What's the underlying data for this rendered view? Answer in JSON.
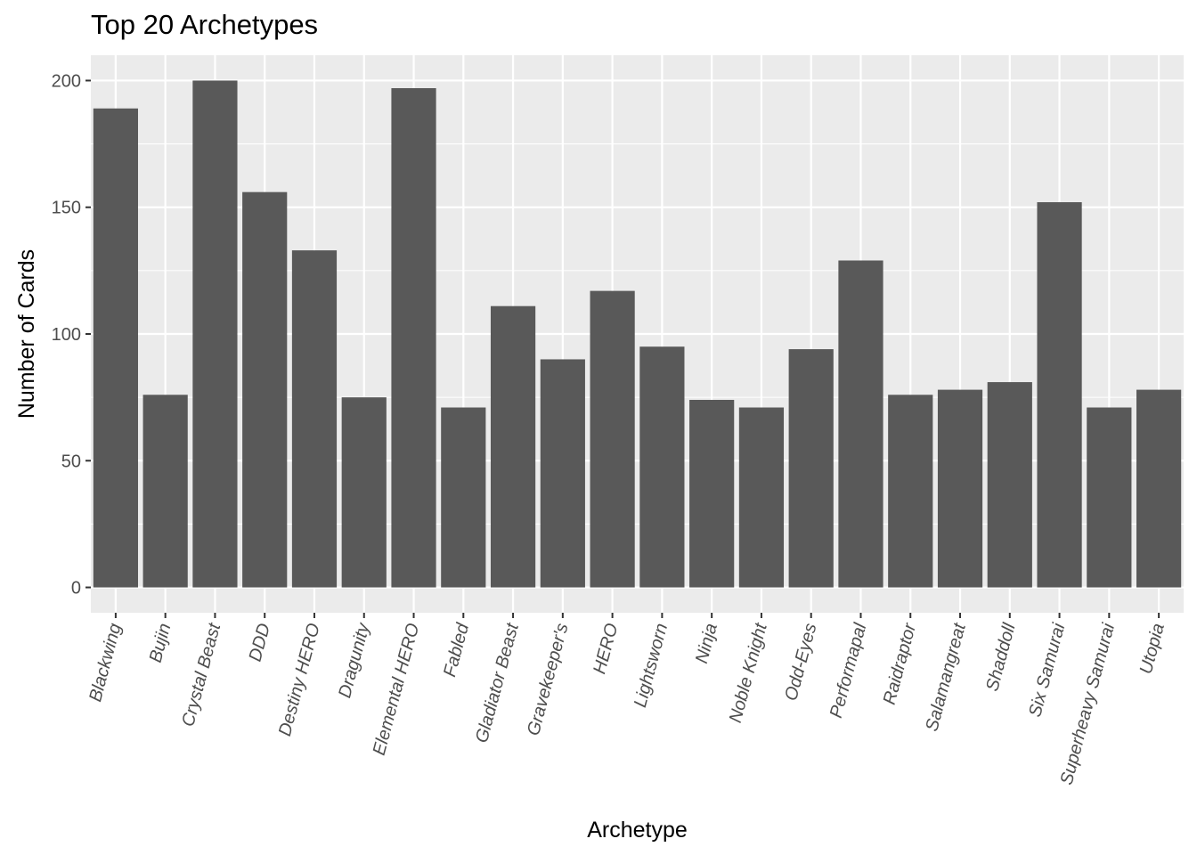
{
  "chart_data": {
    "type": "bar",
    "title": "Top 20 Archetypes",
    "xlabel": "Archetype",
    "ylabel": "Number of Cards",
    "categories": [
      "Blackwing",
      "Bujin",
      "Crystal Beast",
      "DDD",
      "Destiny HERO",
      "Dragunity",
      "Elemental HERO",
      "Fabled",
      "Gladiator Beast",
      "Gravekeeper's",
      "HERO",
      "Lightsworn",
      "Ninja",
      "Noble Knight",
      "Odd-Eyes",
      "Performapal",
      "Raidraptor",
      "Salamangreat",
      "Shaddoll",
      "Six Samurai",
      "Superheavy Samurai",
      "Utopia"
    ],
    "values": [
      189,
      76,
      200,
      156,
      133,
      75,
      197,
      71,
      111,
      90,
      117,
      95,
      74,
      71,
      94,
      129,
      76,
      78,
      81,
      152,
      71,
      78
    ],
    "ylim": [
      -10,
      210
    ],
    "yticks": [
      0,
      50,
      100,
      150,
      200
    ],
    "grid": true,
    "colors": {
      "bar": "#595959",
      "panel": "#ebebeb",
      "grid": "#ffffff"
    }
  }
}
